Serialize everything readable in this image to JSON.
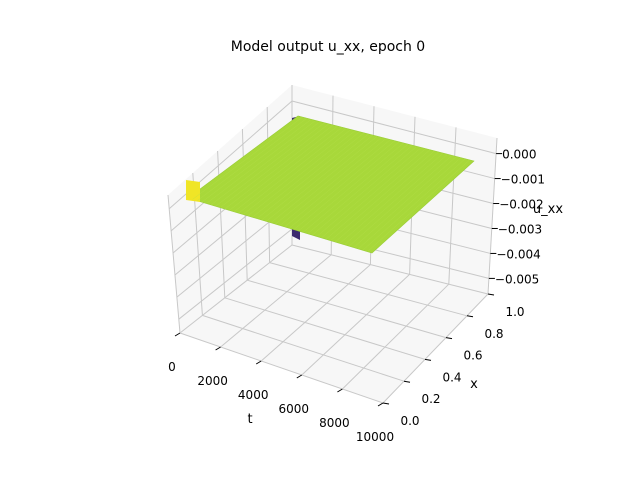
{
  "chart_data": {
    "type": "surface3d",
    "title": "Model output u_xx, epoch 0",
    "xlabel": "t",
    "ylabel": "x",
    "zlabel": "u_xx",
    "xlim": [
      0,
      10000
    ],
    "ylim": [
      0,
      1
    ],
    "zlim": [
      -0.005,
      0.0005
    ],
    "x_ticks": [
      "0",
      "2000",
      "4000",
      "6000",
      "8000",
      "10000"
    ],
    "y_ticks": [
      "0.0",
      "0.2",
      "0.4",
      "0.6",
      "0.8",
      "1.0"
    ],
    "z_ticks": [
      "0.000",
      "−0.001",
      "−0.002",
      "−0.003",
      "−0.004",
      "−0.005"
    ],
    "grid": true,
    "colormap": "viridis",
    "surface_color": "#a8d83a",
    "surface": {
      "description_values": "u_xx approximately 0 over the whole domain, with a thin spike of about -0.005 near t = 0",
      "plateau_value": 0.0,
      "spike_value": -0.005,
      "spike_t": 0
    }
  }
}
